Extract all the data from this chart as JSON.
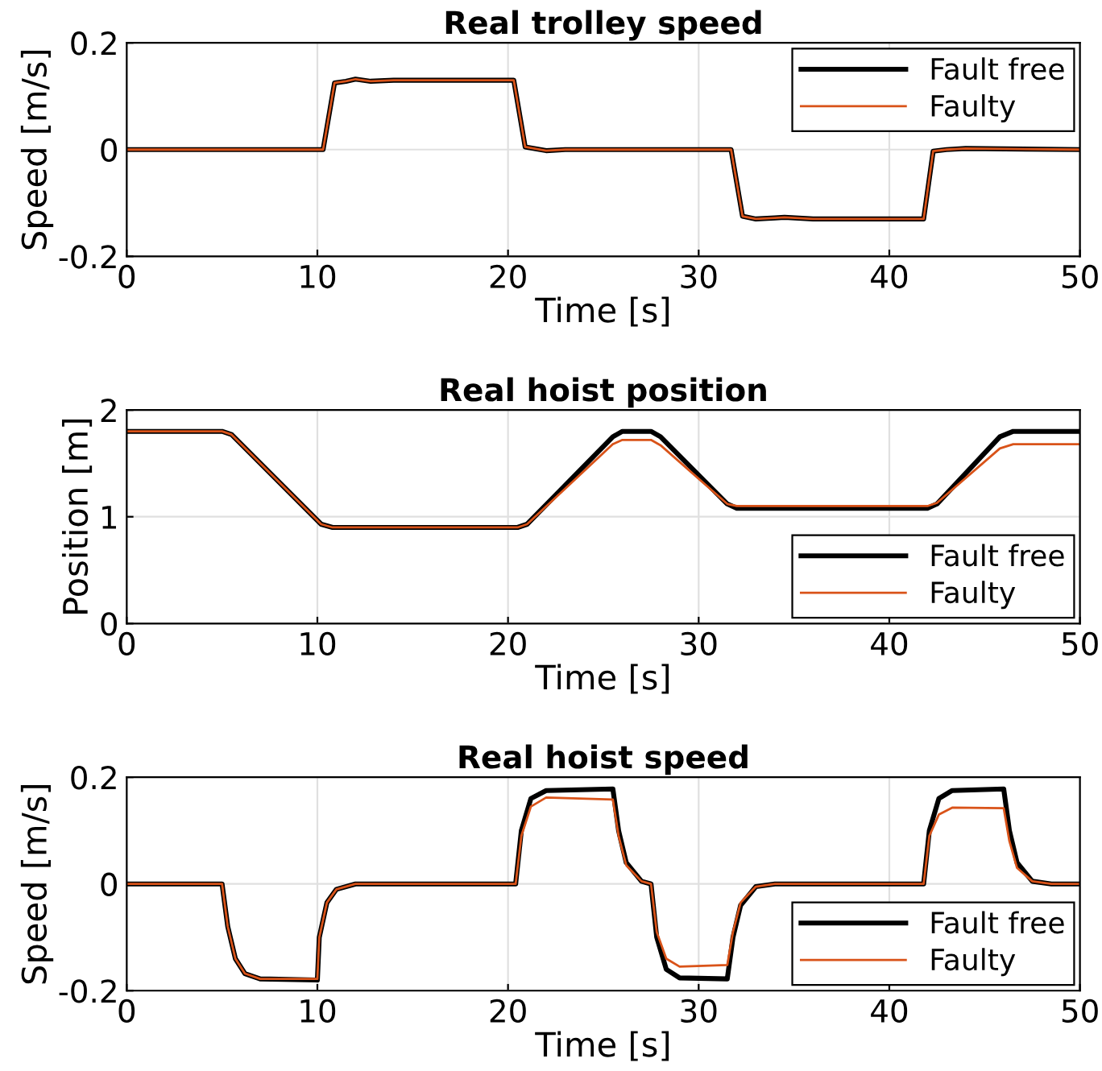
{
  "chart_data": [
    {
      "type": "line",
      "title": "Real trolley speed",
      "xlabel": "Time [s]",
      "ylabel": "Speed [m/s]",
      "xlim": [
        0,
        50
      ],
      "xticks": [
        0,
        10,
        20,
        30,
        40,
        50
      ],
      "ylim": [
        -0.2,
        0.2
      ],
      "yticks": [
        -0.2,
        0,
        0.2
      ],
      "grid": true,
      "legend": "top right",
      "x": [
        0,
        10.3,
        10.9,
        11.5,
        12,
        12.8,
        14,
        20.3,
        20.9,
        22,
        23,
        31.7,
        32.3,
        33,
        34,
        34.5,
        36,
        41.8,
        42.3,
        43,
        44,
        50
      ],
      "series": [
        {
          "name": "Fault free",
          "color": "#000000",
          "values": [
            0,
            0,
            0.125,
            0.128,
            0.132,
            0.128,
            0.13,
            0.13,
            0.005,
            -0.002,
            0,
            0,
            -0.125,
            -0.13,
            -0.128,
            -0.127,
            -0.13,
            -0.13,
            -0.003,
            0,
            0.002,
            0
          ]
        },
        {
          "name": "Faulty",
          "color": "#d95319",
          "values": [
            0,
            0,
            0.125,
            0.128,
            0.132,
            0.128,
            0.13,
            0.13,
            0.005,
            -0.002,
            0,
            0,
            -0.125,
            -0.13,
            -0.128,
            -0.127,
            -0.13,
            -0.13,
            -0.003,
            0,
            0.002,
            0
          ]
        }
      ]
    },
    {
      "type": "line",
      "title": "Real hoist position",
      "xlabel": "Time [s]",
      "ylabel": "Position [m]",
      "xlim": [
        0,
        50
      ],
      "xticks": [
        0,
        10,
        20,
        30,
        40,
        50
      ],
      "ylim": [
        0,
        2
      ],
      "yticks": [
        0,
        1,
        2
      ],
      "grid": true,
      "legend": "bottom right",
      "x": [
        0,
        5,
        5.5,
        10.2,
        10.8,
        20.5,
        21,
        25.5,
        26,
        27.5,
        28,
        31.5,
        32,
        42,
        42.5,
        45.8,
        46.5,
        50
      ],
      "series": [
        {
          "name": "Fault free",
          "color": "#000000",
          "values": [
            1.8,
            1.8,
            1.77,
            0.93,
            0.9,
            0.9,
            0.93,
            1.75,
            1.8,
            1.8,
            1.75,
            1.12,
            1.08,
            1.08,
            1.12,
            1.75,
            1.8,
            1.8
          ]
        },
        {
          "name": "Faulty",
          "color": "#d95319",
          "values": [
            1.8,
            1.8,
            1.77,
            0.93,
            0.9,
            0.9,
            0.93,
            1.68,
            1.72,
            1.72,
            1.67,
            1.12,
            1.1,
            1.1,
            1.13,
            1.64,
            1.68,
            1.68
          ]
        }
      ]
    },
    {
      "type": "line",
      "title": "Real hoist speed",
      "xlabel": "Time [s]",
      "ylabel": "Speed [m/s]",
      "xlim": [
        0,
        50
      ],
      "xticks": [
        0,
        10,
        20,
        30,
        40,
        50
      ],
      "ylim": [
        -0.2,
        0.2
      ],
      "yticks": [
        -0.2,
        0,
        0.2
      ],
      "grid": true,
      "legend": "bottom right",
      "x": [
        0,
        5,
        5.3,
        5.7,
        6.2,
        7,
        10,
        10.1,
        10.5,
        11,
        12,
        20.4,
        20.7,
        21.2,
        22,
        25.5,
        25.8,
        26.2,
        27,
        27.5,
        27.8,
        28.3,
        29,
        31.5,
        31.8,
        32.2,
        33,
        34,
        41.8,
        42.1,
        42.6,
        43.3,
        46,
        46.3,
        46.7,
        47.5,
        48.5,
        50
      ],
      "series": [
        {
          "name": "Fault free",
          "color": "#000000",
          "values": [
            0,
            0,
            -0.08,
            -0.14,
            -0.168,
            -0.178,
            -0.18,
            -0.1,
            -0.035,
            -0.01,
            0,
            0,
            0.1,
            0.16,
            0.175,
            0.178,
            0.1,
            0.04,
            0.005,
            0,
            -0.1,
            -0.16,
            -0.176,
            -0.178,
            -0.1,
            -0.04,
            -0.005,
            0,
            0,
            0.1,
            0.16,
            0.175,
            0.178,
            0.1,
            0.04,
            0.005,
            0,
            0
          ]
        },
        {
          "name": "Faulty",
          "color": "#d95319",
          "values": [
            0,
            0,
            -0.08,
            -0.14,
            -0.168,
            -0.178,
            -0.178,
            -0.1,
            -0.035,
            -0.01,
            0,
            0,
            0.09,
            0.145,
            0.162,
            0.158,
            0.09,
            0.035,
            0.005,
            0,
            -0.09,
            -0.14,
            -0.155,
            -0.152,
            -0.09,
            -0.035,
            -0.005,
            0,
            0,
            0.09,
            0.13,
            0.143,
            0.142,
            0.08,
            0.03,
            0.005,
            0,
            0
          ]
        }
      ]
    }
  ]
}
